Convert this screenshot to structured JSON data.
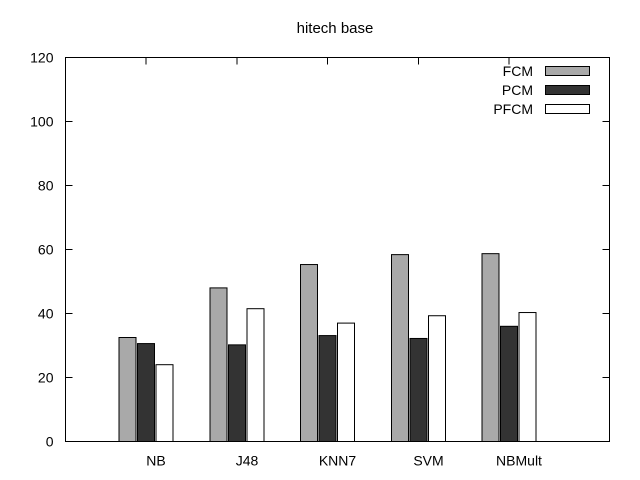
{
  "chart_data": {
    "type": "bar",
    "title": "hitech base",
    "xlabel": "",
    "ylabel": "",
    "categories": [
      "NB",
      "J48",
      "KNN7",
      "SVM",
      "NBMult"
    ],
    "series": [
      {
        "name": "FCM",
        "values": [
          32.5,
          48.0,
          55.3,
          58.4,
          58.7
        ],
        "color": "#a9a9a9"
      },
      {
        "name": "PCM",
        "values": [
          30.6,
          30.2,
          33.1,
          32.2,
          36.0
        ],
        "color": "#333333"
      },
      {
        "name": "PFCM",
        "values": [
          24.0,
          41.5,
          37.0,
          39.3,
          40.3
        ],
        "color": "#ffffff"
      }
    ],
    "ylim": [
      0,
      120
    ],
    "yticks": [
      "0",
      "20",
      "40",
      "60",
      "80",
      "100",
      "120"
    ],
    "grid": false,
    "legend_position": "top-right"
  }
}
